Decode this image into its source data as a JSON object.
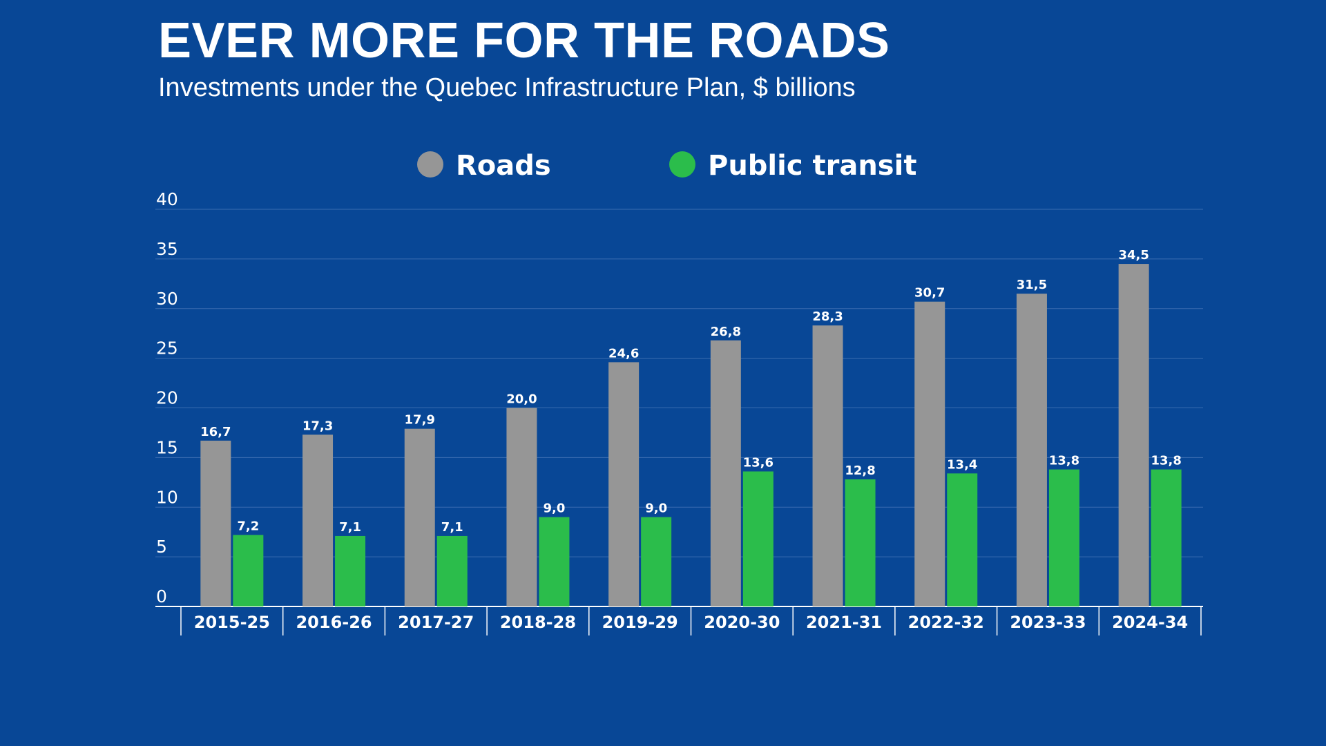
{
  "header": {
    "title": "EVER MORE FOR THE ROADS",
    "subtitle": "Investments under the Quebec Infrastructure Plan, $ billions"
  },
  "colors": {
    "background": "#084796",
    "roads": "#969696",
    "transit": "#2bbd4b",
    "grid": "#3a6cb0",
    "axis": "#ffffff"
  },
  "chart_data": {
    "type": "bar",
    "title": "EVER MORE FOR THE ROADS",
    "subtitle": "Investments under the Quebec Infrastructure Plan, $ billions",
    "xlabel": "",
    "ylabel": "",
    "ylim": [
      0,
      40
    ],
    "yticks": [
      0,
      5,
      10,
      15,
      20,
      25,
      30,
      35,
      40
    ],
    "grid": true,
    "legend_position": "top-center",
    "categories": [
      "2015-25",
      "2016-26",
      "2017-27",
      "2018-28",
      "2019-29",
      "2020-30",
      "2021-31",
      "2022-32",
      "2023-33",
      "2024-34"
    ],
    "series": [
      {
        "name": "Roads",
        "color": "#969696",
        "values": [
          16.7,
          17.3,
          17.9,
          20.0,
          24.6,
          26.8,
          28.3,
          30.7,
          31.5,
          34.5
        ],
        "labels": [
          "16,7",
          "17,3",
          "17,9",
          "20,0",
          "24,6",
          "26,8",
          "28,3",
          "30,7",
          "31,5",
          "34,5"
        ]
      },
      {
        "name": "Public transit",
        "color": "#2bbd4b",
        "values": [
          7.2,
          7.1,
          7.1,
          9.0,
          9.0,
          13.6,
          12.8,
          13.4,
          13.8,
          13.8
        ],
        "labels": [
          "7,2",
          "7,1",
          "7,1",
          "9,0",
          "9,0",
          "13,6",
          "12,8",
          "13,4",
          "13,8",
          "13,8"
        ]
      }
    ]
  }
}
